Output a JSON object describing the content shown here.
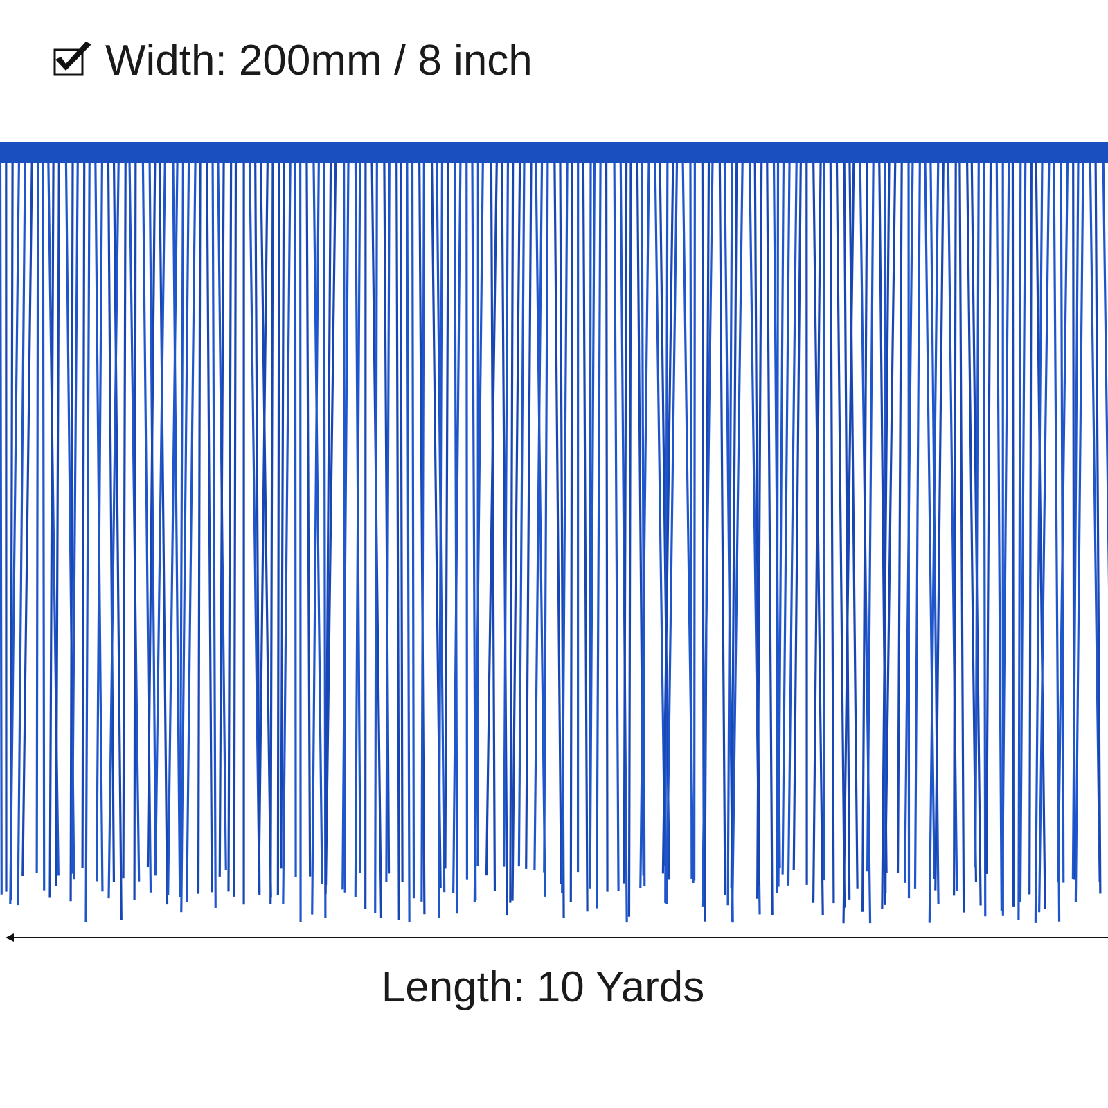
{
  "header": {
    "width_label": "Width: 200mm / 8 inch"
  },
  "footer": {
    "length_label": "Length: 10 Yards"
  }
}
